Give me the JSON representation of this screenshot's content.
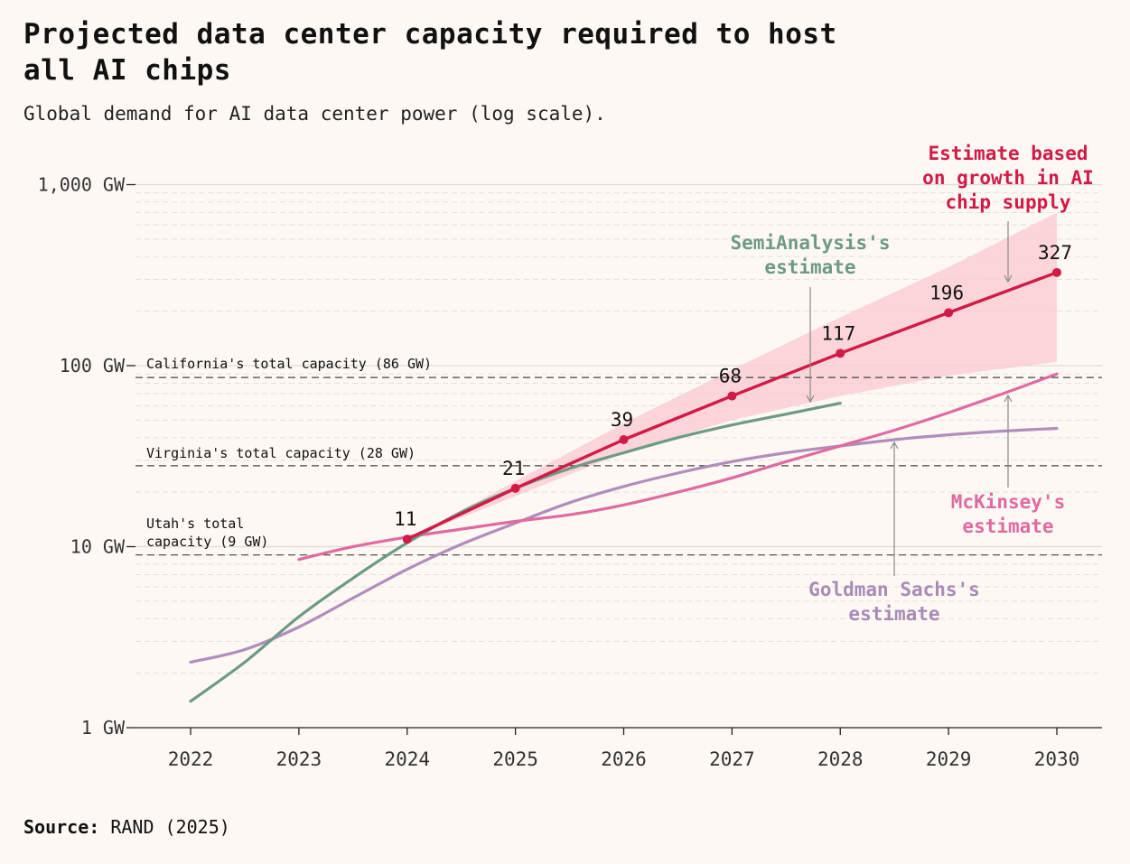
{
  "header": {
    "title_line1": "Projected data center capacity required to host",
    "title_line2": "all AI chips",
    "subtitle": "Global demand for AI data center power (log scale)."
  },
  "footer": {
    "source_label": "Source:",
    "source_value": "RAND (2025)"
  },
  "chart_data": {
    "type": "line",
    "title": "Projected data center capacity required to host all AI chips",
    "subtitle": "Global demand for AI data center power (log scale).",
    "xlabel": "",
    "ylabel": "",
    "y_scale": "log",
    "ylim": [
      1,
      1000
    ],
    "xlim": [
      2021.5,
      2030.4
    ],
    "y_ticks": [
      {
        "value": 1,
        "label": "1 GW"
      },
      {
        "value": 10,
        "label": "10 GW"
      },
      {
        "value": 100,
        "label": "100 GW"
      },
      {
        "value": 1000,
        "label": "1,000 GW"
      }
    ],
    "x_ticks": [
      2022,
      2023,
      2024,
      2025,
      2026,
      2027,
      2028,
      2029,
      2030
    ],
    "x_tick_labels": [
      "2022",
      "2023",
      "2024",
      "2025",
      "2026",
      "2027",
      "2028",
      "2029",
      "2030"
    ],
    "grid": true,
    "legend": "none (direct labels)",
    "reference_lines": [
      {
        "value": 86,
        "label": "California's total capacity (86 GW)",
        "label_lines": [
          "California's total capacity (86 GW)"
        ]
      },
      {
        "value": 28,
        "label": "Virginia's total capacity (28 GW)",
        "label_lines": [
          "Virginia's total capacity (28 GW)"
        ]
      },
      {
        "value": 9,
        "label": "Utah's total capacity (9 GW)",
        "label_lines": [
          "Utah's total",
          "capacity (9 GW)"
        ]
      }
    ],
    "band": {
      "x": [
        2024,
        2025,
        2026,
        2027,
        2028,
        2029,
        2030
      ],
      "low": [
        11,
        19,
        33,
        50,
        68,
        88,
        105
      ],
      "high": [
        11,
        23,
        48,
        95,
        185,
        350,
        700
      ],
      "color": "#f9c9d0"
    },
    "series": [
      {
        "name": "Estimate based on growth in AI chip supply",
        "label_lines": [
          "Estimate based",
          "on growth in AI",
          "chip supply"
        ],
        "color": "#d21a47",
        "markers": true,
        "x": [
          2024,
          2025,
          2026,
          2027,
          2028,
          2029,
          2030
        ],
        "values": [
          11,
          21,
          39,
          68,
          117,
          196,
          327
        ],
        "data_labels": [
          "11",
          "21",
          "39",
          "68",
          "117",
          "196",
          "327"
        ]
      },
      {
        "name": "SemiAnalysis's estimate",
        "label_lines": [
          "SemiAnalysis's",
          "estimate"
        ],
        "color": "#6e9a85",
        "markers": false,
        "x": [
          2022,
          2022.5,
          2023,
          2023.5,
          2024,
          2024.5,
          2025,
          2025.5,
          2026,
          2026.5,
          2027,
          2027.5,
          2028
        ],
        "values": [
          1.4,
          2.3,
          4.1,
          6.7,
          10.5,
          15.5,
          21,
          27,
          33,
          40,
          47,
          54,
          62
        ]
      },
      {
        "name": "McKinsey's estimate",
        "label_lines": [
          "McKinsey's",
          "estimate"
        ],
        "color": "#e06aa0",
        "markers": false,
        "x": [
          2023,
          2023.5,
          2024,
          2024.5,
          2025,
          2025.5,
          2026,
          2026.5,
          2027,
          2027.5,
          2028,
          2028.5,
          2029,
          2029.5,
          2030
        ],
        "values": [
          8.5,
          10,
          11.3,
          12.5,
          13.8,
          15,
          17,
          20,
          24,
          29.5,
          36,
          44,
          55,
          70,
          90
        ]
      },
      {
        "name": "Goldman Sachs's estimate",
        "label_lines": [
          "Goldman Sachs's",
          "estimate"
        ],
        "color": "#b08dbd",
        "markers": false,
        "x": [
          2022,
          2022.5,
          2023,
          2023.5,
          2024,
          2024.5,
          2025,
          2025.5,
          2026,
          2026.5,
          2027,
          2027.5,
          2028,
          2028.5,
          2029,
          2029.5,
          2030
        ],
        "values": [
          2.3,
          2.7,
          3.6,
          5.2,
          7.5,
          10.3,
          13.5,
          17.5,
          21.5,
          25.5,
          29.5,
          33,
          36,
          39,
          41.5,
          43.5,
          45
        ]
      }
    ]
  }
}
